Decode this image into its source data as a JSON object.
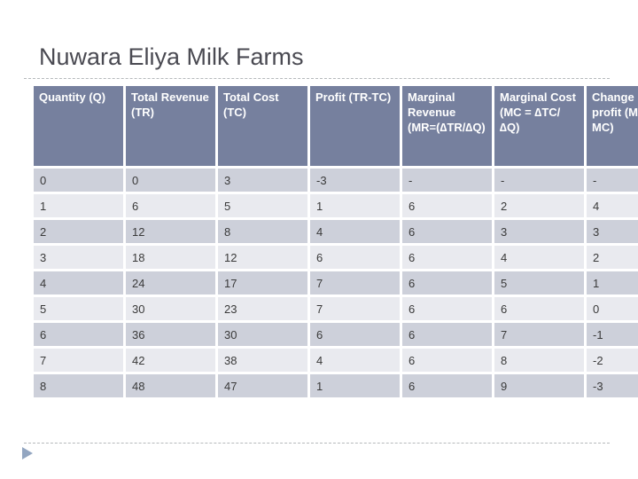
{
  "slide": {
    "title": "Nuwara Eliya Milk Farms"
  },
  "table": {
    "columns": [
      "Quantity (Q)",
      "Total Revenue (TR)",
      "Total Cost (TC)",
      "Profit (TR-TC)",
      "Marginal Revenue (MR=(∆TR/∆Q)",
      "Marginal Cost (MC = ∆TC/∆Q)",
      "Change in profit (MR-MC)"
    ],
    "rows": [
      [
        "0",
        "0",
        "3",
        "-3",
        "-",
        "-",
        "-"
      ],
      [
        "1",
        "6",
        "5",
        "1",
        "6",
        "2",
        "4"
      ],
      [
        "2",
        "12",
        "8",
        "4",
        "6",
        "3",
        "3"
      ],
      [
        "3",
        "18",
        "12",
        "6",
        "6",
        "4",
        "2"
      ],
      [
        "4",
        "24",
        "17",
        "7",
        "6",
        "5",
        "1"
      ],
      [
        "5",
        "30",
        "23",
        "7",
        "6",
        "6",
        "0"
      ],
      [
        "6",
        "36",
        "30",
        "6",
        "6",
        "7",
        "-1"
      ],
      [
        "7",
        "42",
        "38",
        "4",
        "6",
        "8",
        "-2"
      ],
      [
        "8",
        "48",
        "47",
        "1",
        "6",
        "9",
        "-3"
      ]
    ]
  },
  "icons": {
    "footer_arrow": "right-triangle"
  },
  "colors": {
    "header_bg": "#76809E",
    "header_text": "#FFFFFF",
    "row_dark": "#CDD0DA",
    "row_light": "#E9EAEF",
    "cell_text": "#3A3A3A",
    "title_text": "#4A4A52",
    "dashed_line": "#B5B9BB",
    "arrow": "#93A6C1"
  }
}
